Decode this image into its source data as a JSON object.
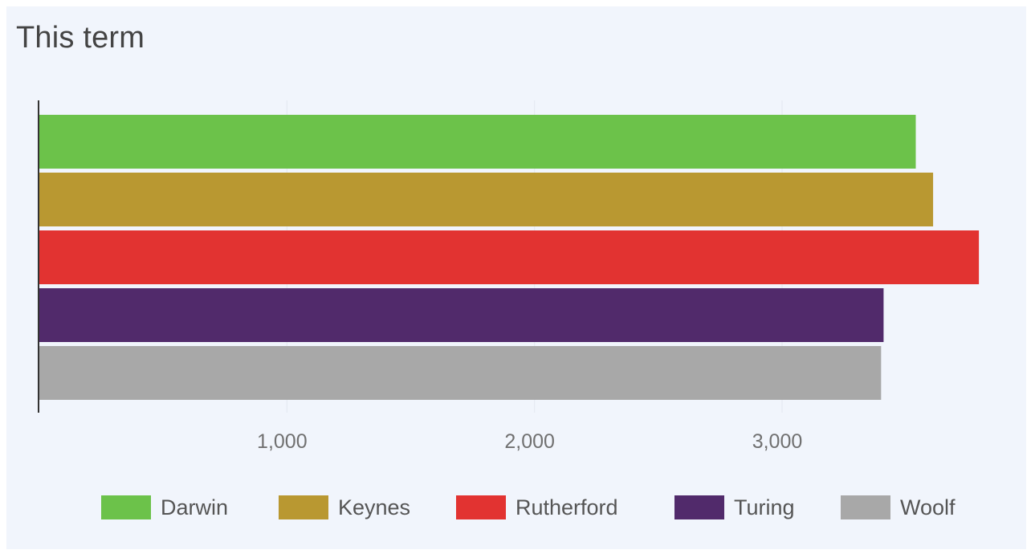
{
  "chart_data": {
    "type": "bar",
    "orientation": "horizontal",
    "title": "This term",
    "xlabel": "",
    "ylabel": "",
    "xlim": [
      0,
      3800
    ],
    "x_ticks": [
      1000,
      2000,
      3000
    ],
    "x_tick_labels": [
      "1,000",
      "2,000",
      "3,000"
    ],
    "grid": true,
    "legend_position": "bottom",
    "series": [
      {
        "name": "Darwin",
        "values": [
          3540
        ],
        "color": "#6cc24a"
      },
      {
        "name": "Keynes",
        "values": [
          3610
        ],
        "color": "#b99831"
      },
      {
        "name": "Rutherford",
        "values": [
          3795
        ],
        "color": "#e23331"
      },
      {
        "name": "Turing",
        "values": [
          3410
        ],
        "color": "#512a6b"
      },
      {
        "name": "Woolf",
        "values": [
          3400
        ],
        "color": "#a8a8a8"
      }
    ]
  }
}
